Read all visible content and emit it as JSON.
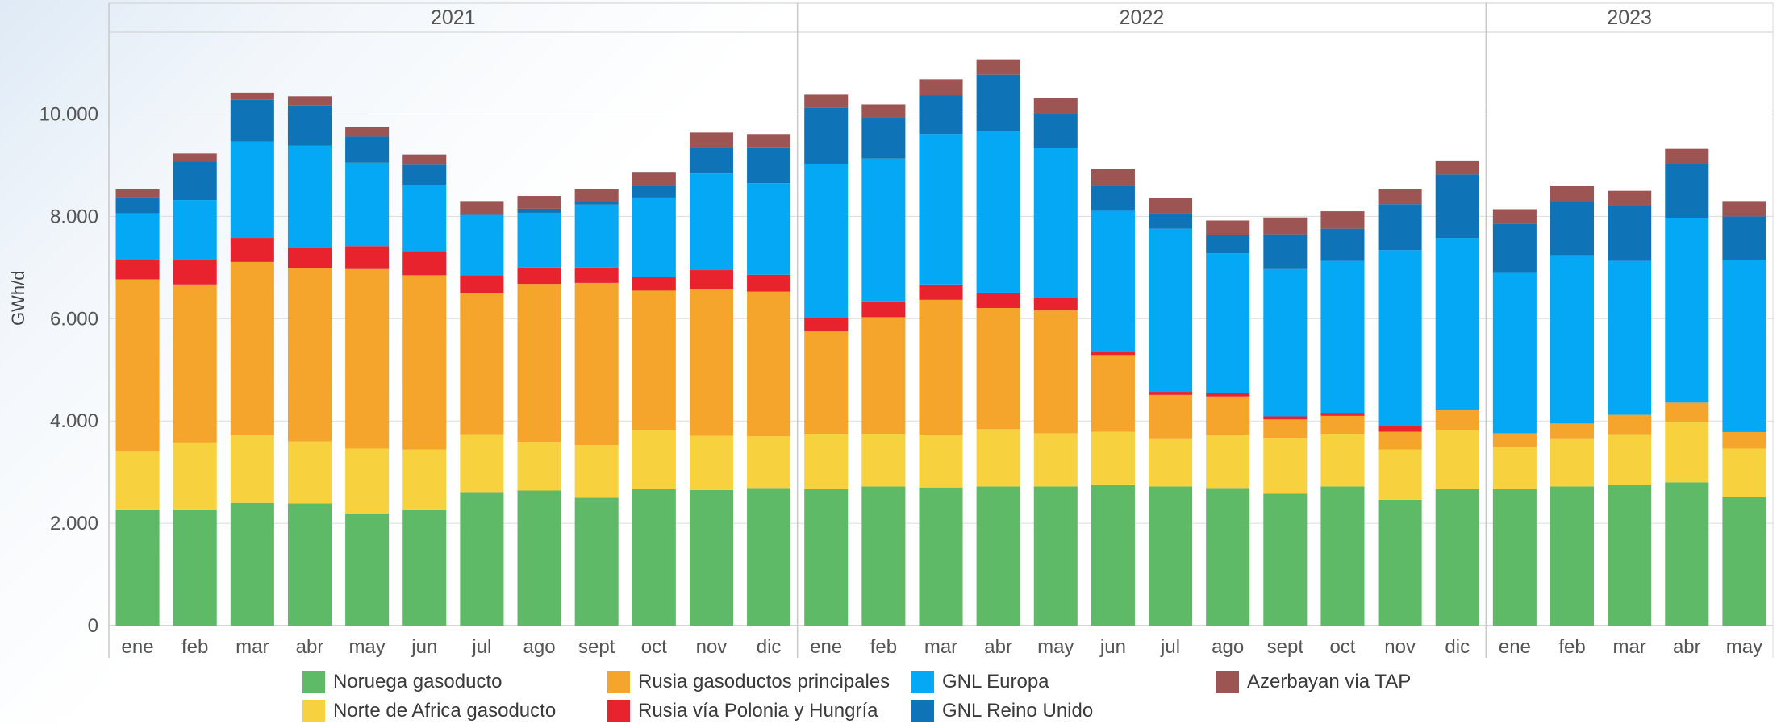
{
  "chart_data": {
    "type": "bar",
    "stacked": true,
    "ylabel": "GWh/d",
    "ylim": [
      0,
      11600
    ],
    "yticks": [
      0,
      2000,
      4000,
      6000,
      8000,
      10000
    ],
    "ytick_labels": [
      "0",
      "2.000",
      "4.000",
      "6.000",
      "8.000",
      "10.000"
    ],
    "grid": true,
    "legend_position": "bottom",
    "groups": [
      {
        "label": "2021",
        "count": 12
      },
      {
        "label": "2022",
        "count": 12
      },
      {
        "label": "2023",
        "count": 5
      }
    ],
    "categories": [
      "ene",
      "feb",
      "mar",
      "abr",
      "may",
      "jun",
      "jul",
      "ago",
      "sept",
      "oct",
      "nov",
      "dic",
      "ene",
      "feb",
      "mar",
      "abr",
      "may",
      "jun",
      "jul",
      "ago",
      "sept",
      "oct",
      "nov",
      "dic",
      "ene",
      "feb",
      "mar",
      "abr",
      "may"
    ],
    "series": [
      {
        "name": "Noruega gasoducto",
        "color": "#5fba67",
        "values": [
          2270,
          2270,
          2400,
          2390,
          2190,
          2270,
          2610,
          2640,
          2500,
          2670,
          2650,
          2690,
          2670,
          2720,
          2700,
          2720,
          2720,
          2760,
          2720,
          2690,
          2580,
          2720,
          2460,
          2670,
          2670,
          2720,
          2750,
          2800,
          2520
        ]
      },
      {
        "name": "Norte de Africa gasoducto",
        "color": "#f8d23e",
        "values": [
          1130,
          1310,
          1320,
          1210,
          1270,
          1170,
          1130,
          950,
          1030,
          1160,
          1060,
          1010,
          1080,
          1030,
          1030,
          1120,
          1040,
          1030,
          940,
          1040,
          1090,
          1030,
          980,
          1160,
          820,
          940,
          990,
          1170,
          940
        ]
      },
      {
        "name": "Rusia gasoductos principales",
        "color": "#f5a52c",
        "values": [
          3370,
          3090,
          3390,
          3390,
          3510,
          3410,
          2760,
          3090,
          3170,
          2720,
          2870,
          2830,
          2000,
          2280,
          2640,
          2370,
          2400,
          1500,
          850,
          750,
          360,
          350,
          350,
          380,
          270,
          290,
          380,
          390,
          330
        ]
      },
      {
        "name": "Rusia vía Polonia y Hungría",
        "color": "#e8232e",
        "values": [
          380,
          470,
          470,
          400,
          450,
          470,
          350,
          320,
          300,
          270,
          370,
          330,
          270,
          310,
          300,
          300,
          240,
          60,
          60,
          60,
          60,
          60,
          110,
          20,
          0,
          0,
          0,
          0,
          20
        ]
      },
      {
        "name": "GNL Europa",
        "color": "#05a8f4",
        "values": [
          910,
          1180,
          1880,
          1990,
          1630,
          1300,
          1180,
          1070,
          1230,
          1550,
          1890,
          1790,
          3000,
          2790,
          2940,
          3160,
          2940,
          2760,
          3190,
          2740,
          2880,
          2970,
          3440,
          3350,
          3150,
          3290,
          3010,
          3600,
          3330
        ]
      },
      {
        "name": "GNL Reino Unido",
        "color": "#0f74b7",
        "values": [
          310,
          750,
          820,
          790,
          510,
          390,
          0,
          80,
          50,
          220,
          520,
          700,
          1100,
          800,
          760,
          1100,
          660,
          480,
          300,
          360,
          680,
          630,
          900,
          1240,
          940,
          1050,
          1070,
          1060,
          860
        ]
      },
      {
        "name": "Azerbayan via TAP",
        "color": "#9c5552",
        "values": [
          160,
          160,
          140,
          180,
          190,
          200,
          270,
          250,
          250,
          280,
          280,
          260,
          260,
          260,
          310,
          300,
          310,
          340,
          300,
          280,
          330,
          340,
          300,
          260,
          290,
          300,
          300,
          300,
          300
        ]
      }
    ]
  }
}
